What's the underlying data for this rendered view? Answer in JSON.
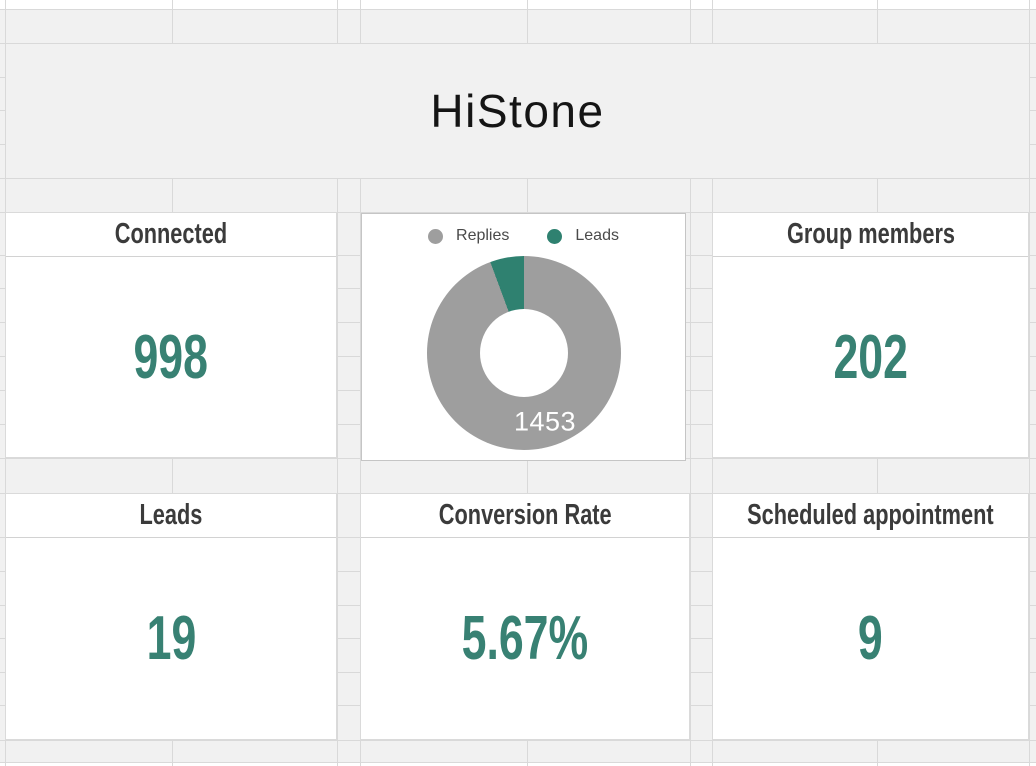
{
  "title": "HiStone",
  "colors": {
    "kpi_value_teal": "#388173",
    "replies_gray": "#9e9e9e",
    "leads_teal": "#2f8170",
    "header_text": "#3b3b3b",
    "grid_line": "#d9d9d9",
    "cell_gray": "#f1f1f1"
  },
  "cards": {
    "connected": {
      "label": "Connected",
      "value": "998"
    },
    "group_members": {
      "label": "Group members",
      "value": "202"
    },
    "leads": {
      "label": "Leads",
      "value": "19"
    },
    "conversion_rate": {
      "label": "Conversion Rate",
      "value": "5.67%"
    },
    "scheduled_appointment": {
      "label": "Scheduled appointment",
      "value": "9"
    }
  },
  "chart_data": {
    "type": "pie",
    "subtype": "donut",
    "legend_position": "top",
    "series": [
      {
        "name": "Replies",
        "value": 1453,
        "color": "#9e9e9e",
        "labeled": true
      },
      {
        "name": "Leads",
        "value": 87,
        "color": "#2f8170",
        "labeled": false,
        "estimated": true
      }
    ],
    "center_label": "1453"
  }
}
